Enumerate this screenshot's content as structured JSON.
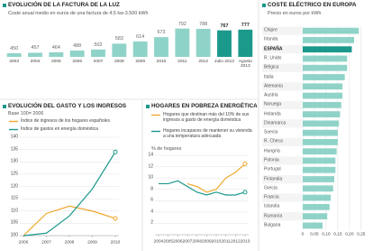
{
  "chart_data": [
    {
      "type": "bar",
      "title": "EVOLUCIÓN DE LA FACTURA DE LA LUZ",
      "subtitle": "Coste anual medio en euros de una factura de 4,5 kw-3.500 kWh",
      "categories": [
        "2003",
        "2004",
        "2005",
        "2006",
        "2007",
        "2008",
        "2009",
        "2010",
        "2011",
        "2012",
        "Julio 2013",
        "Agosto 2013"
      ],
      "values": [
        450,
        457,
        464,
        488,
        502,
        583,
        614,
        673,
        792,
        788,
        767,
        777
      ],
      "colors": [
        "#8fd3c8",
        "#8fd3c8",
        "#8fd3c8",
        "#8fd3c8",
        "#8fd3c8",
        "#8fd3c8",
        "#8fd3c8",
        "#8fd3c8",
        "#8fd3c8",
        "#8fd3c8",
        "#1b998b",
        "#1b998b"
      ],
      "ylim": [
        400,
        800
      ]
    },
    {
      "type": "line",
      "title": "EVOLUCIÓN DEL GASTO Y LOS INGRESOS",
      "subtitle": "Base 100= 2006",
      "x": [
        2006,
        2007,
        2008,
        2009,
        2010
      ],
      "xlim": [
        2006,
        2010
      ],
      "xticks": [
        2006,
        2007,
        2008,
        2009,
        2010
      ],
      "ylim": [
        100,
        140
      ],
      "yticks": [
        100,
        105,
        110,
        115,
        120,
        125,
        130,
        135,
        140
      ],
      "grid": true,
      "series": [
        {
          "name": "Índice de ingresos de los hogares españoles",
          "color": "#f0a830",
          "values": [
            100,
            109,
            112,
            110,
            107
          ]
        },
        {
          "name": "Índice de gastos en energía doméstica",
          "color": "#1b998b",
          "values": [
            100,
            101,
            108,
            119,
            134
          ]
        }
      ]
    },
    {
      "type": "line",
      "title": "HOGARES EN POBREZA ENERGÉTICA",
      "ylabel": "% de hogares",
      "x": [
        2004,
        2005,
        2006,
        2007,
        2008,
        2009,
        2010,
        2011,
        2012,
        2013
      ],
      "xlim": [
        2004,
        2013
      ],
      "xticks": [
        2004,
        2005,
        2006,
        2007,
        2008,
        2009,
        2010,
        2011,
        2012,
        2013
      ],
      "ylim": [
        0,
        14
      ],
      "yticks": [
        2,
        4,
        6,
        8,
        10,
        12,
        14
      ],
      "grid": true,
      "series": [
        {
          "name": "Hogares que destinan más del 10% de sus ingresos a gasto de energía doméstica",
          "color": "#f0a830",
          "values": [
            null,
            null,
            null,
            9,
            8.5,
            7.5,
            8,
            10,
            11,
            12.5
          ]
        },
        {
          "name": "Hogares incapaces de mantener su vivienda a una temperatura adecuada",
          "color": "#1b998b",
          "values": [
            9,
            9,
            9.5,
            8.5,
            7.5,
            7,
            7.5,
            7,
            7,
            7.5
          ]
        }
      ]
    },
    {
      "type": "hbar",
      "title": "COSTE ELÉCTRICO EN EUROPA",
      "subtitle": "Precio en euros por kWh",
      "categories": [
        "Chipre",
        "Irlanda",
        "ESPAÑA",
        "R. Unido",
        "Bélgica",
        "Italia",
        "Alemania",
        "Austria",
        "Noruega",
        "Holanda",
        "Dinamarca",
        "Suecia",
        "R. Checa",
        "Hungría",
        "Polonia",
        "Portugal",
        "Finlandia",
        "Grecia",
        "Francia",
        "Islandia",
        "Rumanía",
        "Bulgaria"
      ],
      "values": [
        0.24,
        0.22,
        0.21,
        0.19,
        0.19,
        0.18,
        0.17,
        0.17,
        0.165,
        0.16,
        0.155,
        0.15,
        0.15,
        0.145,
        0.14,
        0.14,
        0.135,
        0.13,
        0.12,
        0.115,
        0.105,
        0.085
      ],
      "colors": [
        "#8fd3c8",
        "#8fd3c8",
        "#1b998b",
        "#8fd3c8",
        "#8fd3c8",
        "#8fd3c8",
        "#8fd3c8",
        "#8fd3c8",
        "#8fd3c8",
        "#8fd3c8",
        "#8fd3c8",
        "#8fd3c8",
        "#8fd3c8",
        "#8fd3c8",
        "#8fd3c8",
        "#8fd3c8",
        "#8fd3c8",
        "#8fd3c8",
        "#8fd3c8",
        "#8fd3c8",
        "#8fd3c8",
        "#8fd3c8"
      ],
      "xlim": [
        0,
        0.27
      ],
      "xticks": [
        0,
        {
          "value": 0.05,
          "label": "0,05"
        },
        {
          "value": 0.1,
          "label": "0,10"
        },
        {
          "value": 0.15,
          "label": "0,15"
        },
        {
          "value": 0.2,
          "label": "0,20"
        },
        {
          "value": 0.25,
          "label": "0,25"
        }
      ],
      "grid": true
    }
  ]
}
